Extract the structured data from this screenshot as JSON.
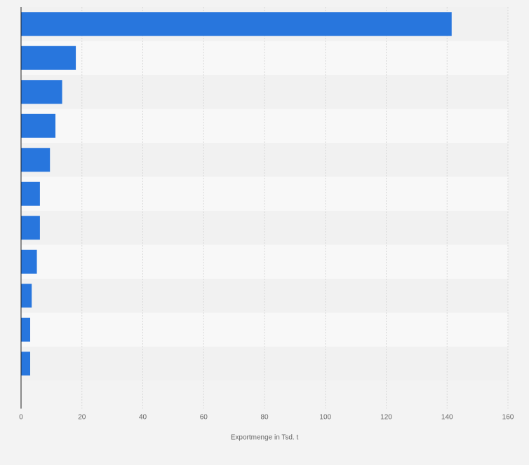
{
  "colors": {
    "background": "#f3f3f3",
    "band_light": "#f8f8f8",
    "band_dark": "#f1f1f1",
    "bar": "#2876dd",
    "grid": "#d8d8d8",
    "axis": "#222222",
    "tick_text": "#666666"
  },
  "chart_data": {
    "type": "bar",
    "orientation": "horizontal",
    "title": "",
    "ylabel": "",
    "xlabel": "Exportmenge in Tsd. t",
    "xlim": [
      0,
      160
    ],
    "xticks": [
      0,
      20,
      40,
      60,
      80,
      100,
      120,
      140,
      160
    ],
    "grid": true,
    "categories": [
      "",
      "",
      "",
      "",
      "",
      "",
      "",
      "",
      "",
      "",
      ""
    ],
    "values": [
      141.5,
      18,
      13.5,
      11.3,
      9.5,
      6.2,
      6.2,
      5.2,
      3.5,
      3,
      3
    ]
  }
}
